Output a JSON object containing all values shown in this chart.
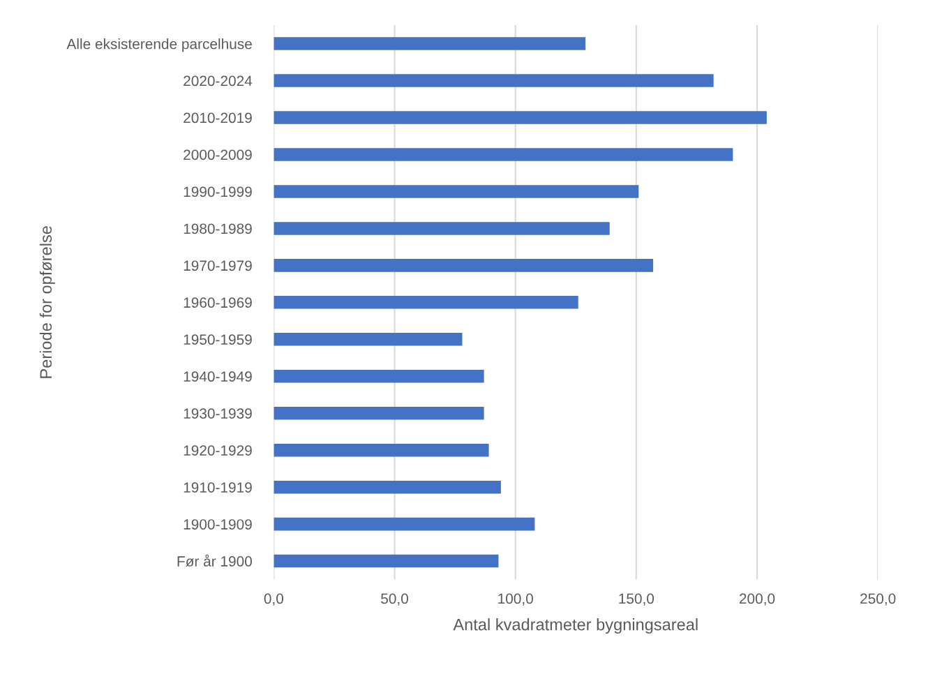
{
  "chart_data": {
    "type": "bar",
    "orientation": "horizontal",
    "xlabel": "Antal kvadratmeter bygningsareal",
    "ylabel": "Periode for opførelse",
    "categories": [
      "Alle eksisterende parcelhuse",
      "2020-2024",
      "2010-2019",
      "2000-2009",
      "1990-1999",
      "1980-1989",
      "1970-1979",
      "1960-1969",
      "1950-1959",
      "1940-1949",
      "1930-1939",
      "1920-1929",
      "1910-1919",
      "1900-1909",
      "Før år 1900"
    ],
    "values": [
      129,
      182,
      204,
      190,
      151,
      139,
      157,
      126,
      78,
      87,
      87,
      89,
      94,
      108,
      93
    ],
    "color": "#4472c4",
    "xlim": [
      0,
      250
    ],
    "xticks": [
      {
        "value": 0,
        "label": "0,0"
      },
      {
        "value": 50,
        "label": "50,0"
      },
      {
        "value": 100,
        "label": "100,0"
      },
      {
        "value": 150,
        "label": "150,0"
      },
      {
        "value": 200,
        "label": "200,0"
      },
      {
        "value": 250,
        "label": "250,0"
      }
    ],
    "grid": "x",
    "legend": false
  }
}
